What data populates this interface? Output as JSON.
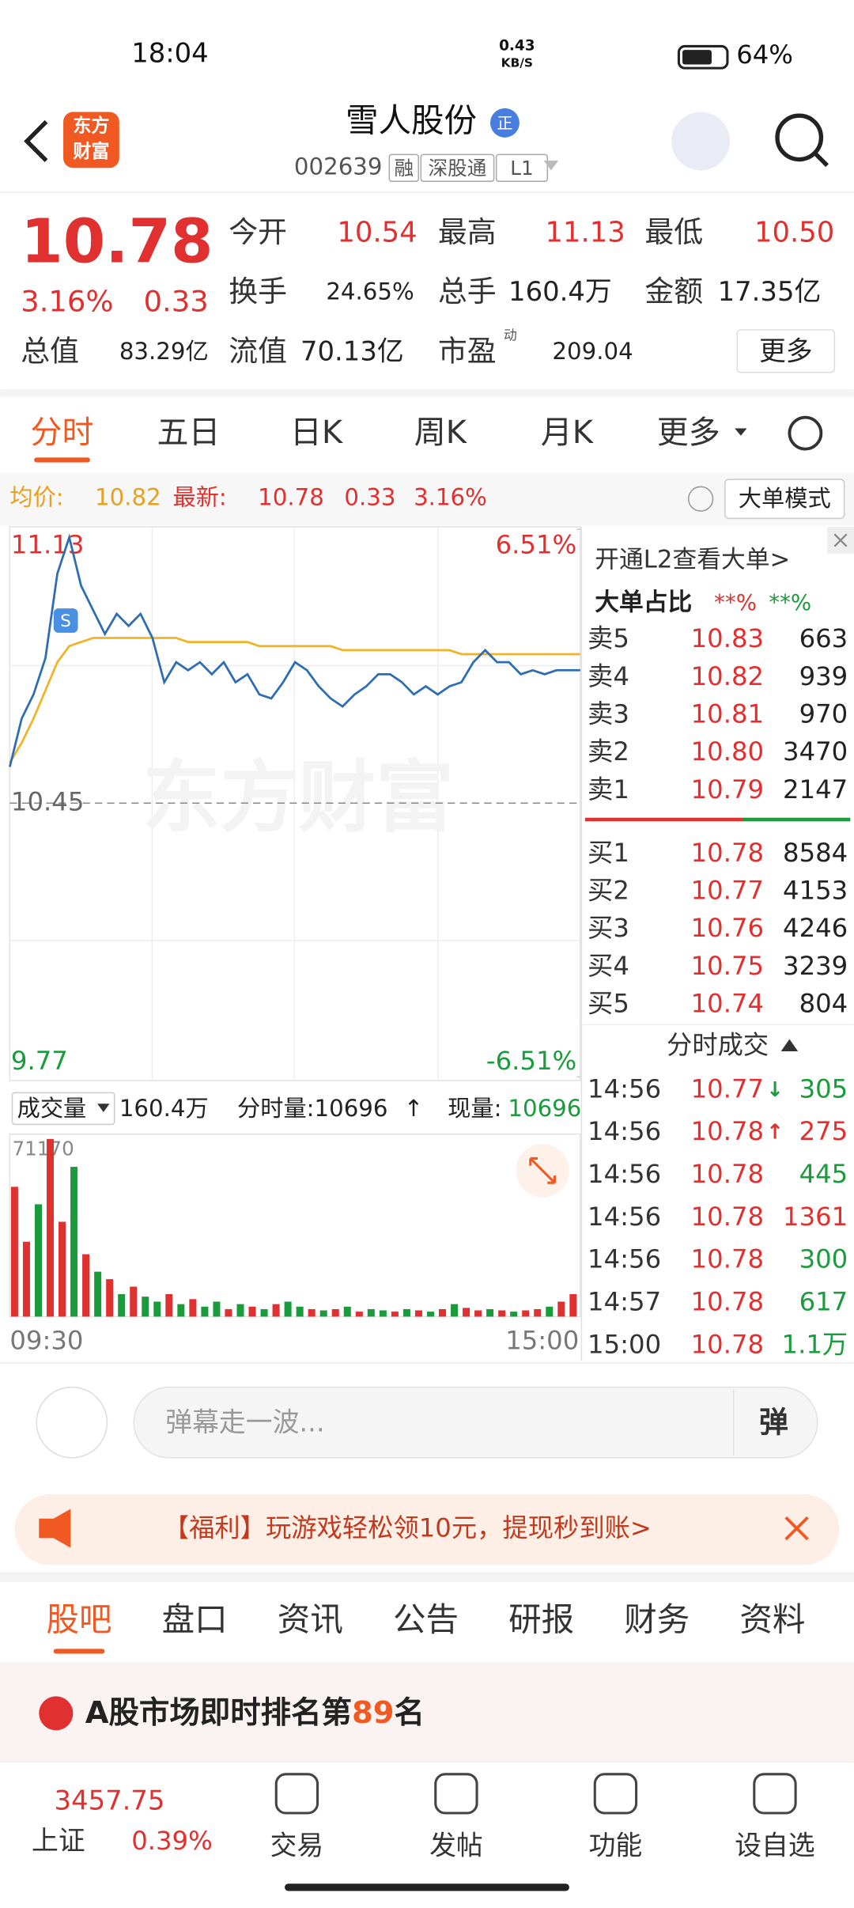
{
  "status": {
    "time": "18:04",
    "speed": "0.43",
    "speed_unit": "KB/S",
    "battery": "64%"
  },
  "header": {
    "logo": [
      "东方",
      "财富"
    ],
    "title": "雪人股份",
    "badge": "正",
    "code": "002639",
    "tags": [
      "融",
      "深股通",
      "L1"
    ]
  },
  "quote": {
    "price": "10.78",
    "change_pct": "3.16%",
    "change": "0.33",
    "more": "更多",
    "fields": [
      {
        "label": "今开",
        "value": "10.54",
        "color": "#e0302f"
      },
      {
        "label": "最高",
        "value": "11.13",
        "color": "#e0302f"
      },
      {
        "label": "最低",
        "value": "10.50",
        "color": "#e0302f"
      },
      {
        "label": "换手",
        "value": "24.65%",
        "color": "#222"
      },
      {
        "label": "总手",
        "value": "160.4万",
        "color": "#222"
      },
      {
        "label": "金额",
        "value": "17.35亿",
        "color": "#222"
      },
      {
        "label": "总值",
        "value": "83.29亿",
        "color": "#222"
      },
      {
        "label": "流值",
        "value": "70.13亿",
        "color": "#222"
      },
      {
        "label": "市盈",
        "sup": "动",
        "value": "209.04",
        "color": "#222"
      }
    ]
  },
  "tabs": [
    "分时",
    "五日",
    "日K",
    "周K",
    "月K",
    "更多"
  ],
  "info": {
    "avg_label": "均价:",
    "avg": "10.82",
    "last_label": "最新:",
    "last": "10.78",
    "change": "0.33",
    "change_pct": "3.16%",
    "mode": "大单模式"
  },
  "intraday_chart": {
    "type": "line",
    "watermark": "东方财富",
    "ylim": [
      9.77,
      11.13
    ],
    "yticks": [
      11.13,
      10.45,
      9.77
    ],
    "y2lim": [
      -6.51,
      6.51
    ],
    "y2ticks": [
      {
        "value": 6.51,
        "label": "6.51%"
      },
      {
        "value": -6.51,
        "label": "-6.51%"
      }
    ],
    "x_labels": [
      "09:30",
      "15:00"
    ],
    "series": [
      {
        "name": "价格",
        "color": "#2f6db3",
        "values": [
          10.54,
          10.66,
          10.72,
          10.81,
          11.02,
          11.11,
          10.99,
          10.93,
          10.87,
          10.92,
          10.89,
          10.92,
          10.86,
          10.75,
          10.8,
          10.78,
          10.8,
          10.77,
          10.8,
          10.75,
          10.77,
          10.72,
          10.71,
          10.75,
          10.8,
          10.78,
          10.74,
          10.71,
          10.69,
          10.72,
          10.74,
          10.77,
          10.77,
          10.75,
          10.72,
          10.74,
          10.72,
          10.74,
          10.75,
          10.8,
          10.83,
          10.8,
          10.8,
          10.77,
          10.78,
          10.77,
          10.78,
          10.78,
          10.78
        ]
      },
      {
        "name": "均价",
        "color": "#f0b429",
        "values": [
          10.55,
          10.6,
          10.66,
          10.73,
          10.8,
          10.84,
          10.85,
          10.86,
          10.86,
          10.86,
          10.86,
          10.86,
          10.86,
          10.86,
          10.86,
          10.85,
          10.85,
          10.85,
          10.85,
          10.85,
          10.85,
          10.84,
          10.84,
          10.84,
          10.84,
          10.84,
          10.84,
          10.84,
          10.83,
          10.83,
          10.83,
          10.83,
          10.83,
          10.83,
          10.83,
          10.83,
          10.83,
          10.83,
          10.82,
          10.82,
          10.82,
          10.82,
          10.82,
          10.82,
          10.82,
          10.82,
          10.82,
          10.82,
          10.82
        ]
      }
    ]
  },
  "volume_chart": {
    "type": "bar",
    "label": "成交量",
    "total": "160.4万",
    "minute": "分时量:10696",
    "current_label": "现量:",
    "current": "10696",
    "ylim": [
      0,
      71170
    ],
    "yticks": [
      71170
    ],
    "up_color": "#e0302f",
    "down_color": "#1a9b3c",
    "values": [
      52000,
      30000,
      45000,
      71170,
      38000,
      60000,
      25000,
      18000,
      15000,
      9000,
      12000,
      8000,
      6000,
      9000,
      5000,
      7000,
      4000,
      6000,
      3000,
      5000,
      4000,
      3000,
      5000,
      6000,
      4000,
      3000,
      2500,
      3000,
      4000,
      2000,
      3000,
      2500,
      2000,
      3000,
      2500,
      2000,
      3000,
      5000,
      3500,
      2500,
      3000,
      2500,
      2000,
      2500,
      3000,
      4000,
      6000,
      9000
    ],
    "up": [
      true,
      true,
      false,
      true,
      true,
      false,
      true,
      false,
      true,
      false,
      true,
      false,
      false,
      true,
      false,
      true,
      false,
      false,
      true,
      false,
      true,
      false,
      true,
      false,
      false,
      true,
      false,
      true,
      false,
      true,
      false,
      false,
      true,
      false,
      true,
      false,
      true,
      false,
      true,
      true,
      false,
      true,
      false,
      true,
      true,
      false,
      true,
      true
    ]
  },
  "orderbook": {
    "l2": "开通L2查看大单>",
    "big_label": "大单占比",
    "big_buy": "**%",
    "big_sell": "**%",
    "asks": [
      {
        "label": "卖5",
        "price": "10.83",
        "vol": "663"
      },
      {
        "label": "卖4",
        "price": "10.82",
        "vol": "939"
      },
      {
        "label": "卖3",
        "price": "10.81",
        "vol": "970"
      },
      {
        "label": "卖2",
        "price": "10.80",
        "vol": "3470"
      },
      {
        "label": "卖1",
        "price": "10.79",
        "vol": "2147"
      }
    ],
    "bids": [
      {
        "label": "买1",
        "price": "10.78",
        "vol": "8584"
      },
      {
        "label": "买2",
        "price": "10.77",
        "vol": "4153"
      },
      {
        "label": "买3",
        "price": "10.76",
        "vol": "4246"
      },
      {
        "label": "买4",
        "price": "10.75",
        "vol": "3239"
      },
      {
        "label": "买5",
        "price": "10.74",
        "vol": "804"
      }
    ],
    "trades_title": "分时成交",
    "trades": [
      {
        "time": "14:56",
        "price": "10.77",
        "arrow": "↓",
        "vol": "305",
        "color": "#1a9b3c"
      },
      {
        "time": "14:56",
        "price": "10.78",
        "arrow": "↑",
        "vol": "275",
        "color": "#e0302f"
      },
      {
        "time": "14:56",
        "price": "10.78",
        "vol": "445",
        "color": "#1a9b3c"
      },
      {
        "time": "14:56",
        "price": "10.78",
        "vol": "1361",
        "color": "#e0302f"
      },
      {
        "time": "14:56",
        "price": "10.78",
        "vol": "300",
        "color": "#1a9b3c"
      },
      {
        "time": "14:57",
        "price": "10.78",
        "vol": "617",
        "color": "#1a9b3c"
      },
      {
        "time": "15:00",
        "price": "10.78",
        "vol": "1.1万",
        "color": "#1a9b3c"
      }
    ]
  },
  "comment": {
    "placeholder": "弹幕走一波...",
    "button": "弹"
  },
  "banner": {
    "text": "【福利】玩游戏轻松领10元，提现秒到账>"
  },
  "section_tabs": [
    "股吧",
    "盘口",
    "资讯",
    "公告",
    "研报",
    "财务",
    "资料"
  ],
  "ranking": {
    "prefix": "A股市场即时排名第",
    "rank": "89",
    "suffix": "名"
  },
  "nav": {
    "index_value": "3457.75",
    "index_name": "上证",
    "index_change": "0.39%",
    "items": [
      "交易",
      "发帖",
      "功能",
      "设自选"
    ]
  }
}
